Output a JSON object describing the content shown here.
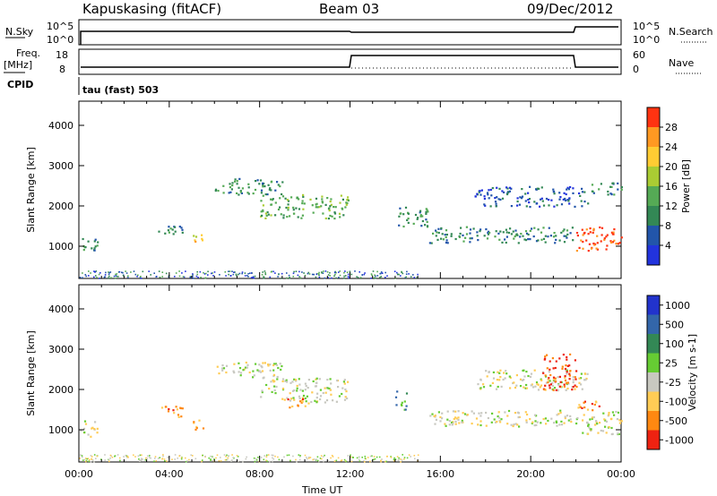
{
  "header": {
    "station": "Kapuskasing (fitACF)",
    "beam": "Beam 03",
    "date": "09/Dec/2012"
  },
  "status": {
    "nsky_label": "N.Sky",
    "nsky_ticks": [
      "10^5",
      "10^0"
    ],
    "nsearch_label": "N.Search",
    "nsearch_ticks": [
      "10^5",
      "10^0"
    ],
    "freq_label_1": "Freq.",
    "freq_label_2": "[MHz]",
    "freq_ticks": [
      "18",
      "8"
    ],
    "nave_label": "Nave",
    "nave_ticks": [
      "60",
      "0"
    ],
    "cpid_label": "CPID",
    "cpid_value": "tau (fast) 503"
  },
  "chart_data": [
    {
      "type": "heatmap",
      "name": "power",
      "ylabel": "Slant Range [km]",
      "yticks": [
        1000,
        2000,
        3000,
        4000
      ],
      "ylim": [
        200,
        4600
      ],
      "xticks": [
        "00:00",
        "04:00",
        "08:00",
        "12:00",
        "16:00",
        "20:00",
        "00:00"
      ],
      "xlim_hours": [
        0,
        24
      ],
      "colorbar": {
        "label": "Power [dB]",
        "ticks": [
          "4",
          "8",
          "12",
          "16",
          "20",
          "24",
          "28"
        ],
        "range": [
          0,
          32
        ],
        "colors": [
          "#2233dd",
          "#2255aa",
          "#338855",
          "#55aa55",
          "#aacc33",
          "#ffcc33",
          "#ff9922",
          "#ff3311"
        ]
      },
      "regions": [
        {
          "t0": 0.0,
          "t1": 0.8,
          "r0": 850,
          "r1": 1250,
          "level": 2
        },
        {
          "t0": 3.5,
          "t1": 4.6,
          "r0": 1300,
          "r1": 1600,
          "level": 2
        },
        {
          "t0": 5.0,
          "t1": 5.5,
          "r0": 1000,
          "r1": 1300,
          "level": 5
        },
        {
          "t0": 6.0,
          "t1": 9.0,
          "r0": 2300,
          "r1": 2700,
          "level": 2
        },
        {
          "t0": 8.0,
          "t1": 11.9,
          "r0": 1700,
          "r1": 2300,
          "level": 3
        },
        {
          "t0": 14.0,
          "t1": 15.5,
          "r0": 1500,
          "r1": 2000,
          "level": 2
        },
        {
          "t0": 15.5,
          "t1": 22.0,
          "r0": 1100,
          "r1": 1500,
          "level": 2
        },
        {
          "t0": 17.5,
          "t1": 22.5,
          "r0": 2000,
          "r1": 2500,
          "level": 1
        },
        {
          "t0": 22.0,
          "t1": 24.0,
          "r0": 900,
          "r1": 1500,
          "level": 7
        },
        {
          "t0": 22.5,
          "t1": 24.0,
          "r0": 2300,
          "r1": 2600,
          "level": 2
        }
      ]
    },
    {
      "type": "heatmap",
      "name": "velocity",
      "ylabel": "Slant Range [km]",
      "yticks": [
        1000,
        2000,
        3000,
        4000
      ],
      "ylim": [
        200,
        4600
      ],
      "xticks": [
        "00:00",
        "04:00",
        "08:00",
        "12:00",
        "16:00",
        "20:00",
        "00:00"
      ],
      "xlim_hours": [
        0,
        24
      ],
      "xlabel": "Time UT",
      "colorbar": {
        "label": "Velocity [m s-1]",
        "ticks": [
          "1000",
          "500",
          "100",
          "25",
          "-25",
          "-100",
          "-500",
          "-1000"
        ],
        "range": [
          -1200,
          1200
        ],
        "colors": [
          "#2233cc",
          "#3366aa",
          "#338855",
          "#66cc33",
          "#c8c8c0",
          "#ffcc55",
          "#ff8811",
          "#ee2211"
        ]
      },
      "regions": [
        {
          "t0": 0.0,
          "t1": 0.8,
          "r0": 850,
          "r1": 1250,
          "level": 4
        },
        {
          "t0": 3.5,
          "t1": 4.6,
          "r0": 1300,
          "r1": 1600,
          "level": 6
        },
        {
          "t0": 5.0,
          "t1": 5.5,
          "r0": 1000,
          "r1": 1300,
          "level": 6
        },
        {
          "t0": 6.0,
          "t1": 9.0,
          "r0": 2300,
          "r1": 2700,
          "level": 4
        },
        {
          "t0": 8.0,
          "t1": 11.9,
          "r0": 1700,
          "r1": 2300,
          "level": 4
        },
        {
          "t0": 9.2,
          "t1": 10.2,
          "r0": 1550,
          "r1": 1800,
          "level": 6
        },
        {
          "t0": 14.0,
          "t1": 14.5,
          "r0": 1500,
          "r1": 2000,
          "level": 2
        },
        {
          "t0": 15.5,
          "t1": 22.0,
          "r0": 1100,
          "r1": 1500,
          "level": 4
        },
        {
          "t0": 17.5,
          "t1": 22.5,
          "r0": 2000,
          "r1": 2500,
          "level": 4
        },
        {
          "t0": 20.5,
          "t1": 22.0,
          "r0": 2000,
          "r1": 2900,
          "level": 7
        },
        {
          "t0": 22.0,
          "t1": 24.0,
          "r0": 900,
          "r1": 1500,
          "level": 4
        },
        {
          "t0": 22.0,
          "t1": 23.0,
          "r0": 1500,
          "r1": 1800,
          "level": 6
        }
      ]
    }
  ]
}
